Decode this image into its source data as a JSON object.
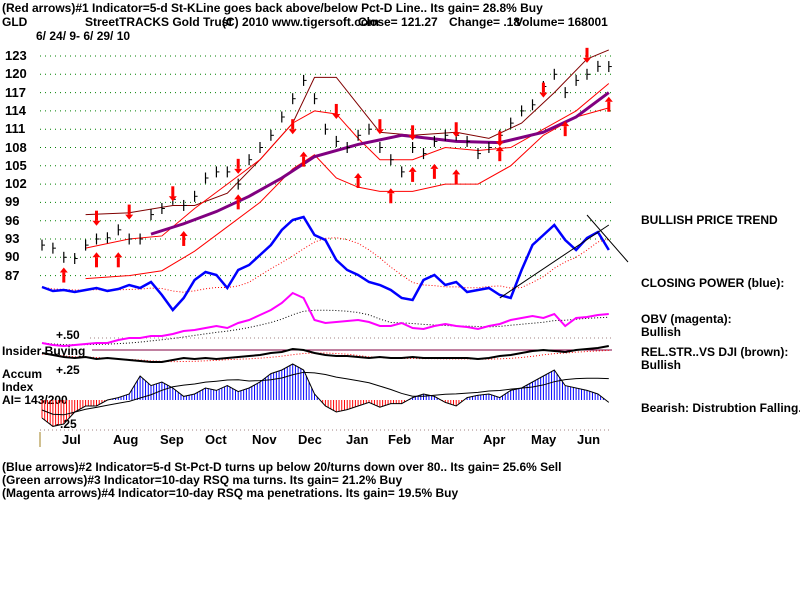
{
  "header": {
    "line1": "(Red arrows)#1 Indicator=5-d St-KLine goes back above/below Pct-D Line.. Its gain= 28.8% Buy",
    "symbol": "GLD",
    "name": "StreetTRACKS Gold Trust",
    "copyright": "(C) 2010 www.tigersoft.com",
    "close": "Close=  121.27",
    "change": "Change= .18",
    "volume": "Volume= 168001",
    "date_range": "6/ 24/ 9- 6/ 29/ 10"
  },
  "right_labels": {
    "trend": "BULLISH PRICE TREND",
    "closing_power": "CLOSING POWER (blue):",
    "obv": "OBV (magenta):",
    "obv_status": "Bullish",
    "relstr": "REL.STR..VS DJI (brown):",
    "relstr_status": "Bullish",
    "accum": "Bearish: Distrubtion Falling."
  },
  "left_labels": {
    "plus50": "+.50",
    "insider": "Insider Buying",
    "plus25": "+.25",
    "accum1": "Accum",
    "accum2": "Index",
    "ai": "AI= 143/200",
    "minus25": "-.25"
  },
  "footer": {
    "line2": "(Blue arrows)#2 Indicator=5-d St-Pct-D turns up below 20/turns down over 80.. Its gain= 25.6% Sell",
    "line3": "(Green arrows)#3 Indicator=10-day RSQ ma turns. Its gain= 21.2% Buy",
    "line4": "(Magenta arrows)#4 Indicator=10-day RSQ ma penetrations. Its gain= 19.5% Buy"
  },
  "chart_data": {
    "type": "line",
    "y_ticks": [
      "123",
      "120",
      "117",
      "114",
      "111",
      "108",
      "105",
      "102",
      "99",
      "96",
      "93",
      "90",
      "87"
    ],
    "ylim": [
      87,
      123
    ],
    "grid": true,
    "x_ticks": [
      "Jul",
      "Aug",
      "Sep",
      "Oct",
      "Nov",
      "Dec",
      "Jan",
      "Feb",
      "Mar",
      "Apr",
      "May",
      "Jun"
    ],
    "colors": {
      "price": "#000000",
      "bands": "#ff0000",
      "upper_band": "#800000",
      "ma": "#800080",
      "closing_power": "#0000ff",
      "obv": "#ff00ff",
      "relstr": "#000000",
      "accum_pos": "#0000ff",
      "accum_neg": "#ff0000",
      "grid": "#008000"
    },
    "price_weekly_close": [
      92,
      91.5,
      90,
      89.8,
      92,
      93,
      93.2,
      94.5,
      93,
      93,
      97,
      98,
      99.5,
      98.5,
      100,
      103,
      104,
      104,
      102,
      106,
      108,
      110,
      113,
      116,
      119,
      116,
      111,
      109,
      108,
      110,
      111,
      108,
      106,
      104,
      108,
      107,
      109,
      110,
      110,
      109,
      107,
      108,
      110,
      112,
      114,
      115,
      118,
      120,
      117,
      119,
      120,
      121.3,
      121.27
    ],
    "upper_band": [
      [
        4,
        97
      ],
      [
        8,
        97.3
      ],
      [
        12,
        98.5
      ],
      [
        14,
        98.5
      ],
      [
        17,
        100.5
      ],
      [
        20,
        106
      ],
      [
        23,
        112
      ],
      [
        25,
        119.5
      ],
      [
        27,
        119.5
      ],
      [
        29,
        115
      ],
      [
        31,
        110.5
      ],
      [
        34,
        110
      ],
      [
        38,
        110.5
      ],
      [
        41,
        109.5
      ],
      [
        44,
        112
      ],
      [
        47,
        117
      ],
      [
        50,
        122.5
      ],
      [
        52,
        124
      ]
    ],
    "mid_band": [
      [
        4,
        91.5
      ],
      [
        8,
        93
      ],
      [
        11,
        93.5
      ],
      [
        14,
        98
      ],
      [
        17,
        102
      ],
      [
        20,
        106
      ],
      [
        23,
        112
      ],
      [
        25,
        114
      ],
      [
        27,
        113.5
      ],
      [
        29,
        109.5
      ],
      [
        31,
        106
      ],
      [
        34,
        106
      ],
      [
        37,
        108
      ],
      [
        40,
        107.5
      ],
      [
        43,
        108
      ],
      [
        46,
        111
      ],
      [
        49,
        114
      ],
      [
        52,
        118.5
      ]
    ],
    "moving_average": [
      [
        10,
        93.8
      ],
      [
        13,
        95.5
      ],
      [
        16,
        97.5
      ],
      [
        19,
        100
      ],
      [
        22,
        103
      ],
      [
        25,
        106.5
      ],
      [
        29,
        108.5
      ],
      [
        33,
        110
      ],
      [
        38,
        109
      ],
      [
        42,
        108.8
      ],
      [
        46,
        110.5
      ],
      [
        49,
        113
      ],
      [
        52,
        117
      ]
    ],
    "lower_band": [
      [
        4,
        86.5
      ],
      [
        8,
        87
      ],
      [
        11,
        87.8
      ],
      [
        14,
        91
      ],
      [
        17,
        95
      ],
      [
        20,
        99
      ],
      [
        23,
        104.5
      ],
      [
        25,
        106.8
      ],
      [
        27,
        103
      ],
      [
        29,
        101.5
      ],
      [
        31,
        100.8
      ],
      [
        34,
        100.8
      ],
      [
        37,
        102
      ],
      [
        40,
        102
      ],
      [
        43,
        105
      ],
      [
        46,
        110
      ],
      [
        49,
        113
      ],
      [
        52,
        114.5
      ]
    ],
    "sell_arrows": [
      [
        5,
        96
      ],
      [
        8,
        97
      ],
      [
        12,
        100
      ],
      [
        18,
        104.5
      ],
      [
        23,
        111
      ],
      [
        27,
        113.5
      ],
      [
        31,
        111
      ],
      [
        34,
        110
      ],
      [
        38,
        110.5
      ],
      [
        42,
        109
      ],
      [
        46,
        117
      ],
      [
        50,
        122.7
      ]
    ],
    "buy_arrows": [
      [
        2,
        87.5
      ],
      [
        5,
        90
      ],
      [
        7,
        90
      ],
      [
        13,
        93.5
      ],
      [
        18,
        99.5
      ],
      [
        24,
        106.5
      ],
      [
        29,
        103
      ],
      [
        32,
        100.5
      ],
      [
        34,
        104
      ],
      [
        36,
        104.5
      ],
      [
        38,
        103.6
      ],
      [
        42,
        107.4
      ],
      [
        48,
        111.5
      ],
      [
        52,
        115.5
      ]
    ],
    "closing_power": [
      23,
      19,
      20,
      18,
      20,
      22,
      19,
      21,
      25,
      22,
      28,
      15,
      0,
      12,
      30,
      38,
      35,
      22,
      40,
      45,
      55,
      65,
      80,
      90,
      93,
      75,
      70,
      50,
      40,
      35,
      28,
      25,
      20,
      12,
      10,
      30,
      35,
      25,
      28,
      18,
      20,
      22,
      15,
      12,
      40,
      65,
      75,
      85,
      70,
      60,
      72,
      78,
      60
    ],
    "obv": [
      5,
      3,
      2,
      3,
      4,
      5,
      5,
      8,
      10,
      10,
      12,
      12,
      14,
      17,
      18,
      20,
      22,
      20,
      25,
      28,
      33,
      38,
      45,
      55,
      50,
      28,
      25,
      26,
      27,
      28,
      26,
      22,
      22,
      25,
      20,
      19,
      22,
      24,
      22,
      21,
      19,
      22,
      24,
      28,
      30,
      32,
      30,
      34,
      22,
      30,
      31,
      33,
      34
    ],
    "relstr": [
      22,
      20,
      18,
      17,
      18,
      16,
      17,
      16,
      15,
      14,
      13,
      13,
      15,
      17,
      16,
      17,
      16,
      17,
      18,
      19,
      20,
      22,
      23,
      26,
      25,
      22,
      20,
      19,
      19,
      18,
      17,
      18,
      17,
      17,
      18,
      17,
      17,
      17,
      17,
      17,
      16,
      17,
      19,
      20,
      22,
      24,
      25,
      24,
      23,
      25,
      26,
      27,
      29
    ],
    "accum_index": [
      -0.15,
      -0.22,
      -0.2,
      -0.1,
      -0.05,
      -0.05,
      0,
      0.02,
      0.05,
      0.2,
      0.12,
      0.15,
      0.1,
      0.03,
      0.05,
      0.1,
      0.08,
      0.12,
      0.07,
      0.1,
      0.15,
      0.22,
      0.25,
      0.3,
      0.25,
      0.05,
      -0.05,
      -0.1,
      -0.08,
      -0.05,
      -0.02,
      -0.06,
      -0.03,
      -0.03,
      0.02,
      0.05,
      0.03,
      -0.02,
      -0.05,
      0.02,
      0.04,
      0.05,
      0.02,
      0.08,
      0.1,
      0.15,
      0.2,
      0.25,
      0.12,
      0.1,
      0.08,
      0.05,
      -0.02
    ]
  }
}
